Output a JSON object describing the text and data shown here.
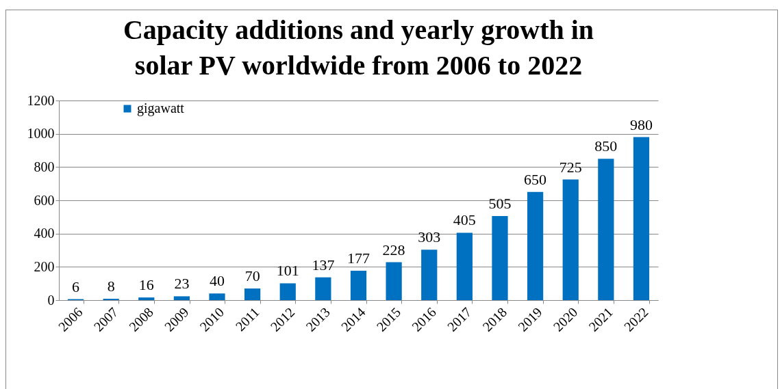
{
  "chart_data": {
    "type": "bar",
    "title": "Capacity additions and yearly growth in solar PV worldwide from 2006 to 2022",
    "categories": [
      "2006",
      "2007",
      "2008",
      "2009",
      "2010",
      "2011",
      "2012",
      "2013",
      "2014",
      "2015",
      "2016",
      "2017",
      "2018",
      "2019",
      "2020",
      "2021",
      "2022"
    ],
    "series": [
      {
        "name": "gigawatt",
        "color": "#0070c0",
        "values": [
          6,
          8,
          16,
          23,
          40,
          70,
          101,
          137,
          177,
          228,
          303,
          405,
          505,
          650,
          725,
          850,
          980
        ]
      }
    ],
    "ylim": [
      0,
      1200
    ],
    "yticks": [
      0,
      200,
      400,
      600,
      800,
      1000,
      1200
    ],
    "grid": "y",
    "legend": "top left",
    "data_labels": true
  }
}
